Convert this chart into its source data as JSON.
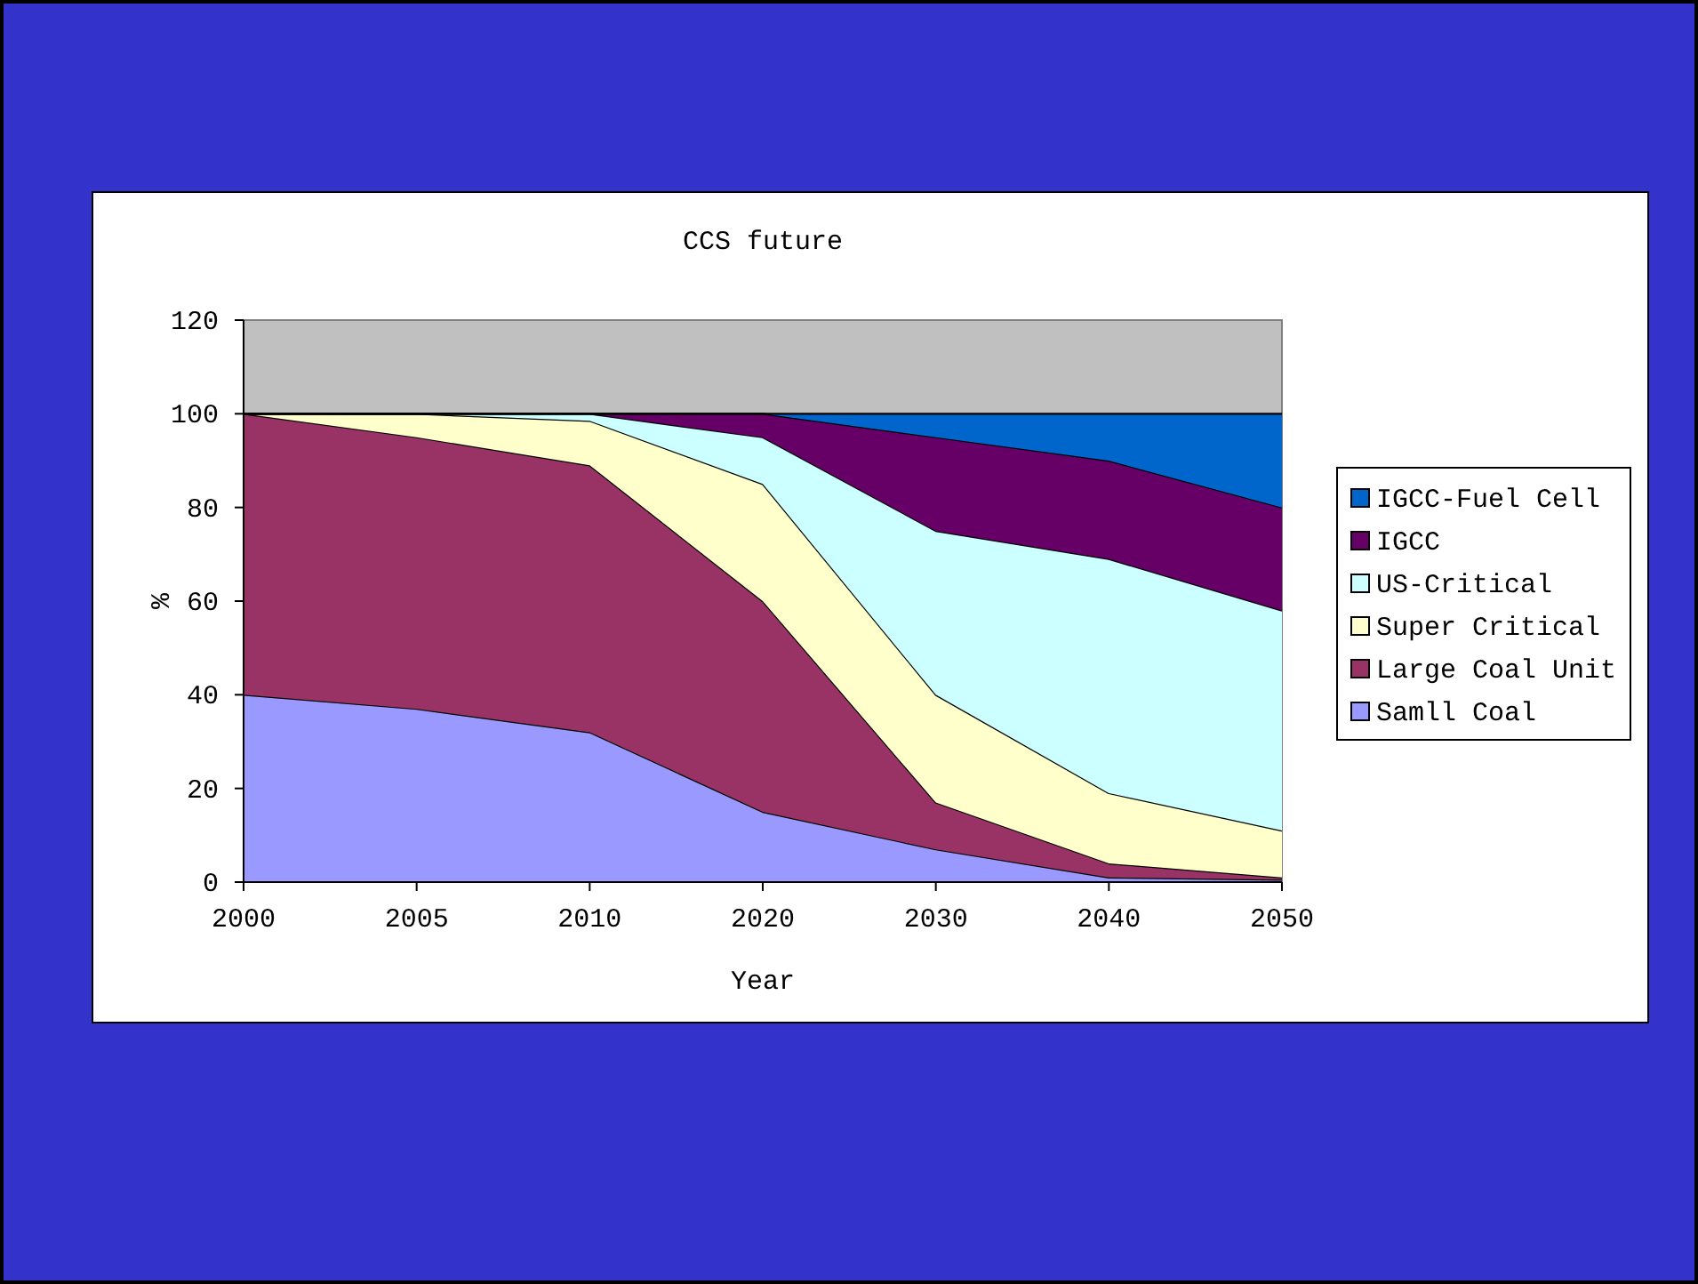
{
  "chart_data": {
    "type": "area",
    "stacked": true,
    "title": "CCS future",
    "xlabel": "Year",
    "ylabel": "%",
    "categories": [
      "2000",
      "2005",
      "2010",
      "2020",
      "2030",
      "2040",
      "2050"
    ],
    "series": [
      {
        "name": "Samll Coal",
        "color": "#9999ff",
        "values": [
          40,
          37,
          32,
          15,
          7,
          1,
          0.5
        ]
      },
      {
        "name": "Large Coal Unit",
        "color": "#993366",
        "values": [
          60,
          58,
          57,
          45,
          10,
          3,
          0.5
        ]
      },
      {
        "name": "Super Critical",
        "color": "#ffffcc",
        "values": [
          0,
          5,
          9.5,
          25,
          23,
          15,
          10
        ]
      },
      {
        "name": "US-Critical",
        "color": "#ccffff",
        "values": [
          0,
          0,
          1.5,
          10,
          35,
          50,
          47
        ]
      },
      {
        "name": "IGCC",
        "color": "#660066",
        "values": [
          0,
          0,
          0,
          5,
          20,
          21,
          22
        ]
      },
      {
        "name": "IGCC-Fuel Cell",
        "color": "#0066cc",
        "values": [
          0,
          0,
          0,
          0,
          5,
          10,
          20
        ]
      }
    ],
    "ylim": [
      0,
      120
    ],
    "yticks": [
      0,
      20,
      40,
      60,
      80,
      100,
      120
    ],
    "grid": false,
    "legend": "right"
  }
}
